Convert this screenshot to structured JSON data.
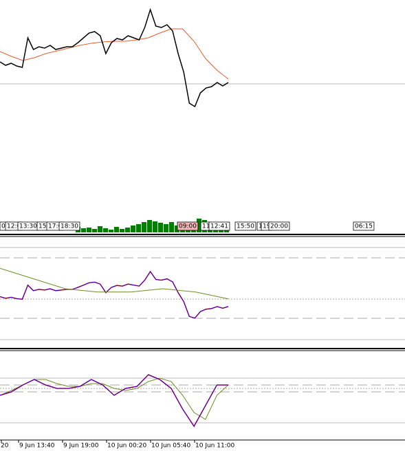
{
  "main": {
    "ylim": [
      0,
      340
    ],
    "price": {
      "color": "#000000",
      "values": [
        250,
        245,
        248,
        244,
        242,
        285,
        268,
        272,
        270,
        274,
        268,
        270,
        272,
        272,
        278,
        285,
        292,
        294,
        288,
        262,
        278,
        284,
        282,
        288,
        285,
        282,
        300,
        326,
        302,
        300,
        304,
        295,
        262,
        235,
        190,
        185,
        205,
        212,
        214,
        220,
        215,
        220
      ]
    },
    "ma": {
      "color": "#f05a28",
      "values": [
        265,
        258,
        252,
        256,
        262,
        266,
        270,
        274,
        277,
        279,
        280,
        280,
        282,
        285,
        292,
        298,
        298,
        280,
        255,
        238,
        225
      ]
    },
    "volume": {
      "color": "#008000",
      "values": [
        8,
        6,
        7,
        5,
        9,
        6,
        4,
        8,
        5,
        7,
        10,
        12,
        15,
        18,
        16,
        14,
        12,
        15,
        10,
        8,
        9,
        12,
        20,
        18,
        10,
        8,
        9,
        12
      ]
    }
  },
  "tags": [
    "00",
    "12:0",
    "13:30",
    "15",
    "17:0",
    "18:30",
    "09:00",
    "11",
    "12:41",
    "15:50",
    "1",
    "19",
    "20:00",
    "06:15"
  ],
  "panel1": {
    "line_colors": [
      "#0000ff",
      "#ff0000"
    ],
    "signal": {
      "color": "#6b8e23",
      "values": [
        336,
        305,
        274,
        264,
        264,
        274,
        264,
        243
      ]
    }
  },
  "panel2": {
    "ylim": [
      0,
      130
    ],
    "osc": {
      "color": "#0000ff",
      "values": [
        65,
        70,
        80,
        88,
        80,
        75,
        75,
        78,
        88,
        80,
        65,
        75,
        78,
        95,
        88,
        75,
        45,
        20,
        50,
        80,
        80
      ]
    },
    "signal": {
      "color": "#6b8e23",
      "values": [
        65,
        72,
        80,
        88,
        88,
        82,
        78,
        78,
        82,
        82,
        75,
        72,
        75,
        85,
        90,
        85,
        65,
        40,
        30,
        65,
        80
      ]
    }
  },
  "time_labels": [
    "20",
    "9 Jun 13:40",
    "9 Jun 19:00",
    "10 Jun 00:20",
    "10 Jun 05:40",
    "10 Jun 11:00"
  ]
}
